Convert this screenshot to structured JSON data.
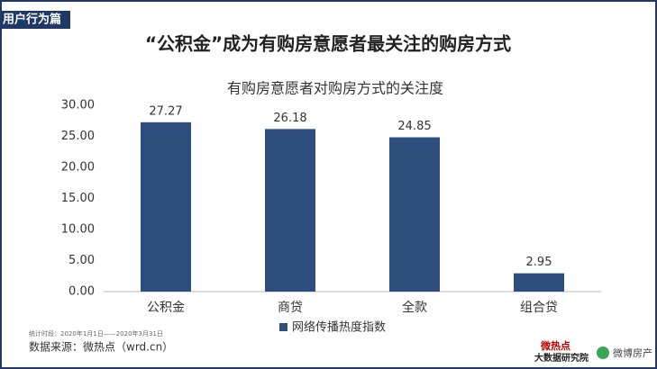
{
  "section_tag": "用户行为篇",
  "chart_data": {
    "type": "bar",
    "title": "“公积金”成为有购房意愿者最关注的购房方式",
    "subtitle": "有购房意愿者对购房方式的关注度",
    "categories": [
      "公积金",
      "商贷",
      "全款",
      "组合贷"
    ],
    "series": [
      {
        "name": "网络传播热度指数",
        "color": "#2e4e7e",
        "values": [
          27.27,
          26.18,
          24.85,
          2.95
        ]
      }
    ],
    "ylim": [
      0,
      30
    ],
    "yticks": [
      {
        "value": 0,
        "label": "0.00"
      },
      {
        "value": 5,
        "label": "5.00"
      },
      {
        "value": 10,
        "label": "10.00"
      },
      {
        "value": 15,
        "label": "15.00"
      },
      {
        "value": 20,
        "label": "20.00"
      },
      {
        "value": 25,
        "label": "25.00"
      },
      {
        "value": 30,
        "label": "30.00"
      }
    ],
    "grid": false,
    "legend": "bottom"
  },
  "footer": {
    "period": "统计时段：2020年1月1日——2020年3月31日",
    "source": "数据来源：微热点（wrd.cn）",
    "logos": [
      "微热点",
      "大数据研究院",
      "微博房产"
    ]
  }
}
